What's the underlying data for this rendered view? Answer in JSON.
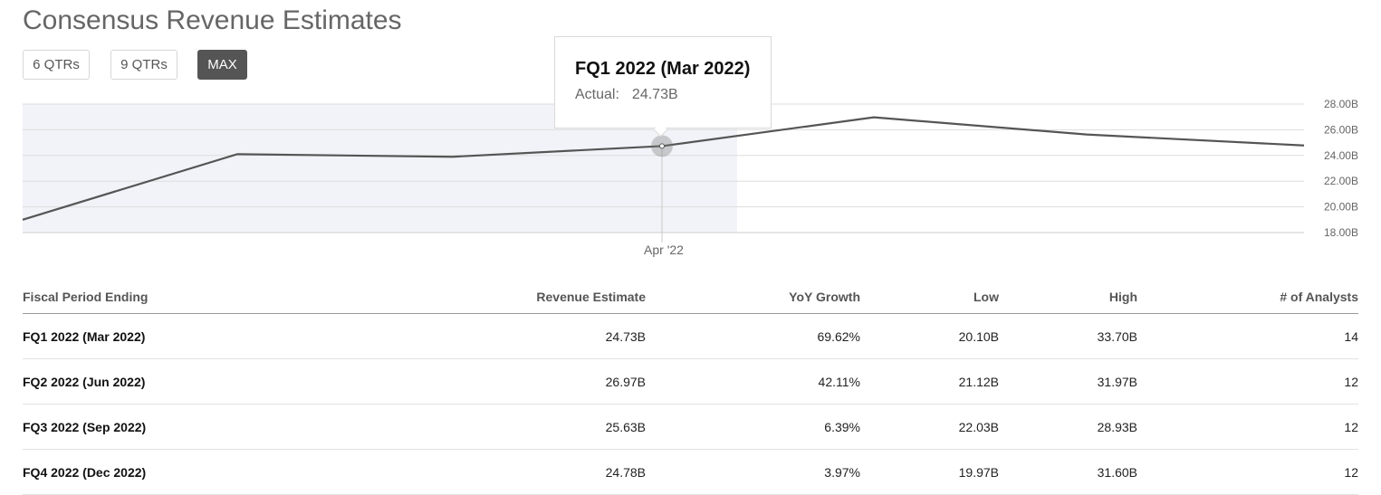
{
  "page": {
    "title": "Consensus Revenue Estimates"
  },
  "range_buttons": [
    {
      "label": "6 QTRs",
      "active": false
    },
    {
      "label": "9 QTRs",
      "active": false
    },
    {
      "label": "MAX",
      "active": true
    }
  ],
  "tooltip": {
    "title": "FQ1 2022 (Mar 2022)",
    "label": "Actual:",
    "value": "24.73B"
  },
  "colors": {
    "line": "#555555",
    "shaded_region": "#f2f3f8",
    "gridline": "#dddddd",
    "active_button": "#555555"
  },
  "chart_data": {
    "type": "line",
    "x_tick_labels": [
      "Apr '22"
    ],
    "y_tick_labels": [
      "28.00B",
      "26.00B",
      "24.00B",
      "22.00B",
      "20.00B",
      "18.00B"
    ],
    "y_ticks": [
      28,
      26,
      24,
      22,
      20,
      18
    ],
    "ylim": [
      18,
      28
    ],
    "grid": true,
    "highlighted_index": 3,
    "shaded_through_index": 4,
    "series": [
      {
        "values": [
          19.0,
          24.1,
          23.9,
          24.73,
          26.97,
          25.63,
          24.78
        ]
      }
    ]
  },
  "table": {
    "headers": [
      "Fiscal Period Ending",
      "Revenue Estimate",
      "YoY Growth",
      "Low",
      "High",
      "# of Analysts"
    ],
    "rows": [
      [
        "FQ1 2022 (Mar 2022)",
        "24.73B",
        "69.62%",
        "20.10B",
        "33.70B",
        "14"
      ],
      [
        "FQ2 2022 (Jun 2022)",
        "26.97B",
        "42.11%",
        "21.12B",
        "31.97B",
        "12"
      ],
      [
        "FQ3 2022 (Sep 2022)",
        "25.63B",
        "6.39%",
        "22.03B",
        "28.93B",
        "12"
      ],
      [
        "FQ4 2022 (Dec 2022)",
        "24.78B",
        "3.97%",
        "19.97B",
        "31.60B",
        "12"
      ]
    ]
  }
}
